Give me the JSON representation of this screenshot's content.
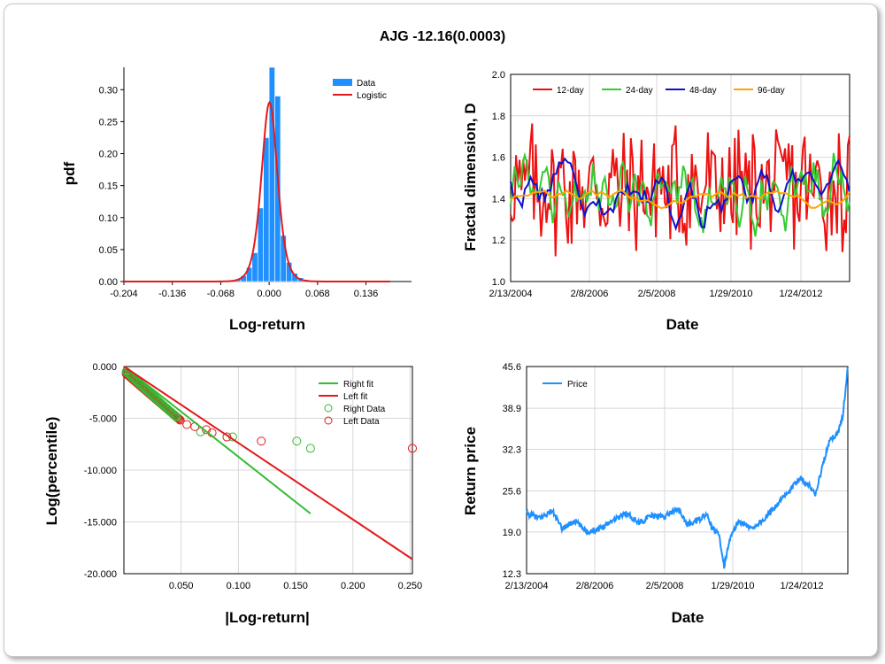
{
  "title": "AJG -12.16(0.0003)",
  "colors": {
    "data_blue": "#1e90ff",
    "fit_red": "#e31a1c",
    "fit_green": "#33bb33",
    "price_blue": "#1e90ff",
    "d12": "#ee1111",
    "d24": "#33cc33",
    "d48": "#1111cc",
    "d96": "#ffa500"
  },
  "chart_data": [
    {
      "type": "bar",
      "id": "histogram",
      "xlabel": "Log-return",
      "ylabel": "pdf",
      "x_ticks": [
        "-0.204",
        "-0.136",
        "-0.068",
        "0.000",
        "0.068",
        "0.136"
      ],
      "x_tick_values": [
        -0.204,
        -0.136,
        -0.068,
        0.0,
        0.068,
        0.136
      ],
      "y_ticks": [
        "0.00",
        "0.05",
        "0.10",
        "0.15",
        "0.20",
        "0.25",
        "0.30"
      ],
      "y_tick_values": [
        0,
        0.05,
        0.1,
        0.15,
        0.2,
        0.25,
        0.3
      ],
      "xlim": [
        -0.204,
        0.2
      ],
      "ylim": [
        0,
        0.335
      ],
      "legend": [
        "Data",
        "Logistic"
      ],
      "bins": [
        {
          "x": -0.052,
          "v": 0.002
        },
        {
          "x": -0.044,
          "v": 0.004
        },
        {
          "x": -0.036,
          "v": 0.009
        },
        {
          "x": -0.028,
          "v": 0.022
        },
        {
          "x": -0.02,
          "v": 0.045
        },
        {
          "x": -0.012,
          "v": 0.115
        },
        {
          "x": -0.004,
          "v": 0.225
        },
        {
          "x": 0.004,
          "v": 0.335
        },
        {
          "x": 0.012,
          "v": 0.29
        },
        {
          "x": 0.02,
          "v": 0.072
        },
        {
          "x": 0.028,
          "v": 0.03
        },
        {
          "x": 0.036,
          "v": 0.013
        },
        {
          "x": 0.044,
          "v": 0.006
        },
        {
          "x": 0.052,
          "v": 0.003
        }
      ],
      "logistic_fit": {
        "mu": 0.0005,
        "s": 0.0075,
        "range": [
          -0.204,
          0.17
        ]
      }
    },
    {
      "type": "line",
      "id": "fractal-dimension",
      "xlabel": "Date",
      "ylabel": "Fractal dimension, D",
      "x_ticks": [
        "2/13/2004",
        "2/8/2006",
        "2/5/2008",
        "1/29/2010",
        "1/24/2012"
      ],
      "y_ticks": [
        "1.0",
        "1.2",
        "1.4",
        "1.6",
        "1.8",
        "2.0"
      ],
      "y_tick_values": [
        1.0,
        1.2,
        1.4,
        1.6,
        1.8,
        2.0
      ],
      "ylim": [
        1.0,
        2.0
      ],
      "series_names": [
        "12-day",
        "24-day",
        "48-day",
        "96-day"
      ]
    },
    {
      "type": "scatter",
      "id": "tail-fit",
      "xlabel": "|Log-return|",
      "ylabel": "Log(percentile)",
      "x_ticks": [
        "0.050",
        "0.100",
        "0.150",
        "0.200",
        "0.250"
      ],
      "x_tick_values": [
        0.05,
        0.1,
        0.15,
        0.2,
        0.25
      ],
      "y_ticks": [
        "0.000",
        "-5.000",
        "-10.000",
        "-15.000",
        "-20.000"
      ],
      "y_tick_values": [
        0,
        -5,
        -10,
        -15,
        -20
      ],
      "xlim": [
        0.0,
        0.252
      ],
      "ylim": [
        -20,
        0
      ],
      "legend": [
        "Right fit",
        "Left fit",
        "Right Data",
        "Left Data"
      ],
      "right_fit": {
        "x": [
          0.0,
          0.163
        ],
        "y": [
          0.0,
          -14.2
        ]
      },
      "left_fit": {
        "x": [
          0.0,
          0.252
        ],
        "y": [
          0.0,
          -18.6
        ]
      },
      "right_data_outliers": [
        [
          0.067,
          -6.3
        ],
        [
          0.095,
          -6.8
        ],
        [
          0.151,
          -7.2
        ],
        [
          0.163,
          -7.9
        ]
      ],
      "left_data_outliers": [
        [
          0.055,
          -5.6
        ],
        [
          0.062,
          -5.8
        ],
        [
          0.072,
          -6.1
        ],
        [
          0.077,
          -6.4
        ],
        [
          0.09,
          -6.8
        ],
        [
          0.12,
          -7.2
        ],
        [
          0.252,
          -7.9
        ]
      ]
    },
    {
      "type": "line",
      "id": "price",
      "xlabel": "Date",
      "ylabel": "Return price",
      "x_ticks": [
        "2/13/2004",
        "2/8/2006",
        "2/5/2008",
        "1/29/2010",
        "1/24/2012"
      ],
      "y_ticks": [
        "12.3",
        "19.0",
        "25.6",
        "32.3",
        "38.9",
        "45.6"
      ],
      "y_tick_values": [
        12.3,
        19.0,
        25.6,
        32.3,
        38.9,
        45.6
      ],
      "ylim": [
        12.3,
        45.6
      ],
      "legend": [
        "Price"
      ],
      "series": [
        {
          "name": "Price",
          "anchors": [
            [
              0,
              22.0
            ],
            [
              0.04,
              21.2
            ],
            [
              0.08,
              22.4
            ],
            [
              0.11,
              19.5
            ],
            [
              0.15,
              20.8
            ],
            [
              0.19,
              19.0
            ],
            [
              0.23,
              19.6
            ],
            [
              0.27,
              21.0
            ],
            [
              0.31,
              22.0
            ],
            [
              0.35,
              20.5
            ],
            [
              0.39,
              21.6
            ],
            [
              0.43,
              21.5
            ],
            [
              0.47,
              22.8
            ],
            [
              0.5,
              20.2
            ],
            [
              0.53,
              20.8
            ],
            [
              0.56,
              21.8
            ],
            [
              0.58,
              19.5
            ],
            [
              0.6,
              18.5
            ],
            [
              0.615,
              13.5
            ],
            [
              0.63,
              17.5
            ],
            [
              0.66,
              20.8
            ],
            [
              0.7,
              19.6
            ],
            [
              0.74,
              21.0
            ],
            [
              0.78,
              23.5
            ],
            [
              0.82,
              25.6
            ],
            [
              0.85,
              27.8
            ],
            [
              0.88,
              26.5
            ],
            [
              0.9,
              25.0
            ],
            [
              0.92,
              29.5
            ],
            [
              0.945,
              33.8
            ],
            [
              0.97,
              35.0
            ],
            [
              0.985,
              38.0
            ],
            [
              1.0,
              45.6
            ]
          ]
        }
      ]
    }
  ]
}
